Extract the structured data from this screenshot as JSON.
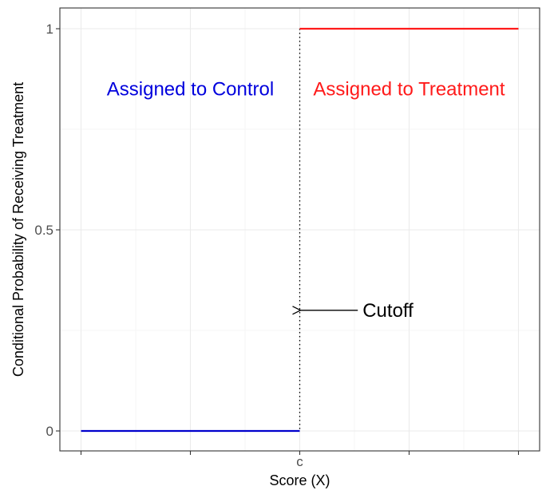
{
  "chart_data": {
    "type": "line",
    "title": "",
    "xlabel": "Score (X)",
    "ylabel": "Conditional Probability of Receiving Treatment",
    "xlim": [
      -1,
      1
    ],
    "ylim": [
      0,
      1
    ],
    "x_ticks": [
      {
        "value": -1,
        "label": ""
      },
      {
        "value": -0.5,
        "label": ""
      },
      {
        "value": 0,
        "label": "c"
      },
      {
        "value": 0.5,
        "label": ""
      },
      {
        "value": 1,
        "label": ""
      }
    ],
    "y_ticks": [
      {
        "value": 0,
        "label": "0"
      },
      {
        "value": 0.5,
        "label": "0.5"
      },
      {
        "value": 1,
        "label": "1"
      }
    ],
    "grid": true,
    "series": [
      {
        "color": "#0000cc",
        "x": [
          -1,
          0
        ],
        "y": [
          0,
          0
        ]
      },
      {
        "color": "#ff1a1a",
        "x": [
          0,
          1
        ],
        "y": [
          1,
          1
        ]
      }
    ],
    "cutoff": {
      "x": 0,
      "style": "dotted"
    },
    "annotations": [
      {
        "text": "Assigned to Control",
        "x": -0.5,
        "y": 0.85,
        "color": "#0000dd"
      },
      {
        "text": "Assigned to Treatment",
        "x": 0.5,
        "y": 0.85,
        "color": "#ff1a1a"
      },
      {
        "text": "Cutoff",
        "x": 0.28,
        "y": 0.3,
        "color": "#000000",
        "arrow_to": {
          "x": 0,
          "y": 0.3
        }
      }
    ]
  }
}
